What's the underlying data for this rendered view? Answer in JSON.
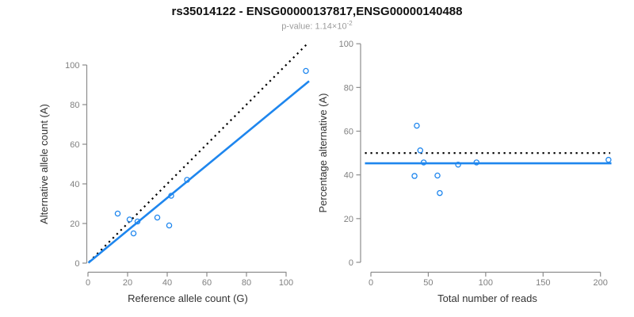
{
  "chart_data": {
    "type": "scatter",
    "title": "rs35014122 - ENSG00000137817,ENSG00000140488",
    "subtitle_prefix": "p-value: 1.14×10",
    "subtitle_exponent": "-2",
    "samples": [
      {
        "ref": 15,
        "alt": 25,
        "total": 40,
        "pct": 62.5
      },
      {
        "ref": 21,
        "alt": 22,
        "total": 43,
        "pct": 51.2
      },
      {
        "ref": 25,
        "alt": 21,
        "total": 46,
        "pct": 45.7
      },
      {
        "ref": 23,
        "alt": 15,
        "total": 38,
        "pct": 39.5
      },
      {
        "ref": 35,
        "alt": 23,
        "total": 58,
        "pct": 39.7
      },
      {
        "ref": 41,
        "alt": 19,
        "total": 60,
        "pct": 31.7
      },
      {
        "ref": 42,
        "alt": 34,
        "total": 76,
        "pct": 44.7
      },
      {
        "ref": 50,
        "alt": 42,
        "total": 92,
        "pct": 45.7
      },
      {
        "ref": 110,
        "alt": 97,
        "total": 207,
        "pct": 46.9
      }
    ],
    "plots": [
      {
        "id": "allele-counts",
        "xfield": "ref",
        "yfield": "alt",
        "xlabel": "Reference allele count (G)",
        "ylabel": "Alternative allele count (A)",
        "xticks": [
          0,
          20,
          40,
          60,
          80,
          100
        ],
        "yticks": [
          0,
          20,
          40,
          60,
          80,
          100
        ],
        "xlim": [
          0,
          100
        ],
        "ylim": [
          0,
          100
        ],
        "lines": [
          {
            "name": "identity-line",
            "style": "dotted",
            "slope": 1,
            "intercept": 0
          },
          {
            "name": "proportion-fit",
            "style": "solid",
            "slope": 0.823,
            "intercept": 0
          }
        ]
      },
      {
        "id": "percentage-vs-reads",
        "xfield": "total",
        "yfield": "pct",
        "xlabel": "Total number of reads",
        "ylabel": "Percentage alternative (A)",
        "xticks": [
          0,
          50,
          100,
          150,
          200
        ],
        "yticks": [
          0,
          20,
          40,
          60,
          80,
          100
        ],
        "xlim": [
          0,
          200
        ],
        "ylim": [
          0,
          100
        ],
        "lines": [
          {
            "name": "expected-50-percent",
            "style": "dotted",
            "y": 50
          },
          {
            "name": "mean-percentage",
            "style": "solid",
            "y": 45.3
          }
        ]
      }
    ]
  },
  "colors": {
    "point_blue": "#1E86EE",
    "fit_blue": "#1E86EE",
    "dotted_black": "#000000",
    "axis_gray": "#8c8c8c",
    "tick_label_gray": "#7f7f7f",
    "axis_title_dark": "#333333",
    "title_black": "#111111",
    "subtitle_gray": "#9c9c9c"
  }
}
